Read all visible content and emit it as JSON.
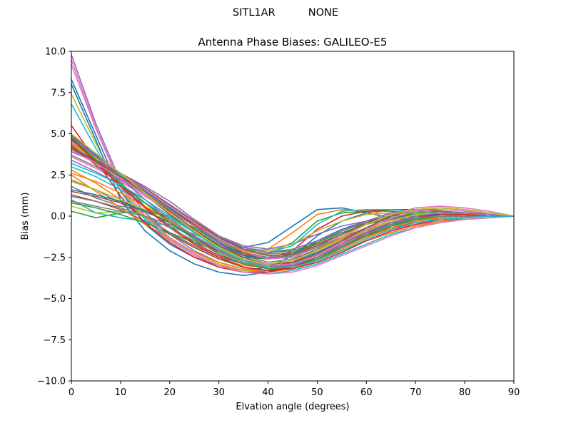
{
  "figure": {
    "suptitle_left": "SITL1AR",
    "suptitle_right": "NONE"
  },
  "chart_data": {
    "type": "line",
    "title": "Antenna Phase Biases: GALILEO-E5",
    "xlabel": "Elvation angle (degrees)",
    "ylabel": "Bias (mm)",
    "xlim": [
      0,
      90
    ],
    "ylim": [
      -10,
      10
    ],
    "xticks": [
      "0",
      "10",
      "20",
      "30",
      "40",
      "50",
      "60",
      "70",
      "80",
      "90"
    ],
    "yticks": [
      "10.0",
      "7.5",
      "5.0",
      "2.5",
      "0.0",
      "−2.5",
      "−5.0",
      "−7.5",
      "−10.0"
    ],
    "legend": "none",
    "grid": false,
    "x": [
      0,
      5,
      10,
      15,
      20,
      25,
      30,
      35,
      40,
      45,
      50,
      55,
      60,
      65,
      70,
      75,
      80,
      85,
      90
    ],
    "series": [
      {
        "color": "#1f77b4",
        "values": [
          8.3,
          4.9,
          1.5,
          -0.5,
          -1.7,
          -2.5,
          -3.0,
          -3.3,
          -3.1,
          -2.4,
          -1.2,
          -0.3,
          0.2,
          0.4,
          0.4,
          0.3,
          0.2,
          0.1,
          0.0
        ]
      },
      {
        "color": "#ff7f0e",
        "values": [
          2.8,
          2.0,
          1.0,
          0.0,
          -1.0,
          -1.9,
          -2.6,
          -3.0,
          -3.1,
          -2.8,
          -2.1,
          -1.4,
          -0.8,
          -0.4,
          -0.2,
          -0.1,
          0.0,
          0.0,
          0.0
        ]
      },
      {
        "color": "#2ca02c",
        "values": [
          0.3,
          -0.1,
          0.2,
          0.3,
          0.0,
          -0.7,
          -1.6,
          -2.3,
          -2.5,
          -2.4,
          -1.6,
          -0.9,
          -0.4,
          -0.2,
          -0.1,
          0.0,
          0.0,
          0.0,
          0.0
        ]
      },
      {
        "color": "#d62728",
        "values": [
          4.7,
          3.4,
          1.9,
          0.6,
          -0.6,
          -1.6,
          -2.4,
          -2.9,
          -3.1,
          -2.8,
          -2.2,
          -1.6,
          -1.1,
          -0.7,
          -0.4,
          -0.2,
          -0.1,
          0.0,
          0.0
        ]
      },
      {
        "color": "#9467bd",
        "values": [
          9.8,
          5.6,
          2.1,
          0.2,
          -1.1,
          -2.1,
          -2.8,
          -3.2,
          -3.3,
          -3.0,
          -2.4,
          -1.6,
          -0.9,
          -0.4,
          -0.1,
          0.0,
          0.0,
          0.0,
          0.0
        ]
      },
      {
        "color": "#8c564b",
        "values": [
          1.3,
          0.9,
          0.4,
          -0.3,
          -1.1,
          -1.9,
          -2.6,
          -3.1,
          -3.3,
          -3.0,
          -2.4,
          -1.8,
          -1.2,
          -0.8,
          -0.5,
          -0.3,
          -0.2,
          -0.1,
          0.0
        ]
      },
      {
        "color": "#e377c2",
        "values": [
          9.2,
          5.3,
          1.8,
          -0.2,
          -1.5,
          -2.4,
          -3.0,
          -3.3,
          -3.3,
          -3.0,
          -2.4,
          -1.8,
          -1.2,
          -0.8,
          -0.5,
          -0.3,
          -0.1,
          0.0,
          0.0
        ]
      },
      {
        "color": "#7f7f7f",
        "values": [
          2.2,
          1.6,
          0.8,
          -0.1,
          -1.0,
          -1.8,
          -2.5,
          -2.9,
          -3.0,
          -2.7,
          -2.0,
          -1.4,
          -0.9,
          -0.5,
          -0.3,
          -0.1,
          0.0,
          0.0,
          0.0
        ]
      },
      {
        "color": "#bcbd22",
        "values": [
          7.4,
          4.4,
          1.6,
          -0.1,
          -1.3,
          -2.2,
          -2.9,
          -3.3,
          -3.4,
          -3.2,
          -2.7,
          -2.1,
          -1.5,
          -1.0,
          -0.6,
          -0.4,
          -0.2,
          -0.1,
          0.0
        ]
      },
      {
        "color": "#17becf",
        "values": [
          6.8,
          4.1,
          1.5,
          -0.2,
          -1.4,
          -2.3,
          -3.0,
          -3.4,
          -3.5,
          -3.3,
          -2.9,
          -2.3,
          -1.7,
          -1.1,
          -0.7,
          -0.4,
          -0.2,
          -0.1,
          0.0
        ]
      },
      {
        "color": "#1f77b4",
        "values": [
          4.1,
          3.2,
          2.3,
          1.4,
          0.4,
          -0.6,
          -1.5,
          -1.9,
          -1.6,
          -0.6,
          0.4,
          0.5,
          0.2,
          -0.1,
          -0.2,
          -0.2,
          -0.1,
          0.0,
          0.0
        ]
      },
      {
        "color": "#ff7f0e",
        "values": [
          4.3,
          3.3,
          2.4,
          1.4,
          0.4,
          -0.6,
          -1.5,
          -2.2,
          -2.0,
          -1.0,
          0.1,
          0.4,
          0.3,
          0.1,
          0.0,
          0.0,
          0.0,
          0.0,
          0.0
        ]
      },
      {
        "color": "#2ca02c",
        "values": [
          4.5,
          3.5,
          2.5,
          1.6,
          0.6,
          -0.4,
          -1.3,
          -2.1,
          -2.3,
          -1.6,
          -0.3,
          0.2,
          0.3,
          0.3,
          0.2,
          0.1,
          0.1,
          0.0,
          0.0
        ]
      },
      {
        "color": "#d62728",
        "values": [
          4.7,
          3.6,
          2.5,
          1.5,
          0.5,
          -0.5,
          -1.4,
          -2.3,
          -2.6,
          -2.1,
          -0.8,
          0.0,
          0.3,
          0.4,
          0.4,
          0.3,
          0.2,
          0.1,
          0.0
        ]
      },
      {
        "color": "#9467bd",
        "values": [
          4.6,
          3.7,
          2.6,
          1.6,
          0.6,
          -0.4,
          -1.2,
          -1.8,
          -2.0,
          -1.7,
          -1.1,
          -0.6,
          -0.3,
          -0.1,
          0.0,
          0.0,
          0.0,
          0.0,
          0.0
        ]
      },
      {
        "color": "#8c564b",
        "values": [
          4.9,
          3.8,
          2.5,
          1.3,
          0.1,
          -1.0,
          -1.8,
          -2.4,
          -2.5,
          -2.2,
          -1.7,
          -1.1,
          -0.5,
          -0.1,
          0.1,
          0.1,
          0.1,
          0.0,
          0.0
        ]
      },
      {
        "color": "#e377c2",
        "values": [
          3.6,
          2.9,
          2.1,
          1.2,
          0.3,
          -0.6,
          -1.4,
          -2.0,
          -2.4,
          -2.5,
          -2.2,
          -1.6,
          -1.0,
          -0.5,
          -0.2,
          0.0,
          0.0,
          0.0,
          0.0
        ]
      },
      {
        "color": "#7f7f7f",
        "values": [
          1.8,
          1.1,
          0.6,
          0.4,
          -0.1,
          -0.8,
          -1.7,
          -2.4,
          -2.8,
          -2.6,
          -2.0,
          -1.4,
          -0.8,
          -0.4,
          -0.2,
          -0.1,
          0.0,
          0.0,
          0.0
        ]
      },
      {
        "color": "#bcbd22",
        "values": [
          0.6,
          0.2,
          0.3,
          0.2,
          -0.2,
          -0.9,
          -1.8,
          -2.6,
          -3.0,
          -2.9,
          -2.3,
          -1.6,
          -1.0,
          -0.5,
          -0.2,
          -0.1,
          0.0,
          0.0,
          0.0
        ]
      },
      {
        "color": "#17becf",
        "values": [
          1.0,
          0.2,
          -0.1,
          -0.3,
          -0.6,
          -1.2,
          -2.0,
          -2.6,
          -2.9,
          -2.7,
          -2.2,
          -1.6,
          -1.0,
          -0.6,
          -0.3,
          -0.1,
          0.0,
          0.0,
          0.0
        ]
      },
      {
        "color": "#1f77b4",
        "values": [
          8.0,
          4.6,
          1.0,
          -0.9,
          -2.1,
          -2.9,
          -3.4,
          -3.6,
          -3.4,
          -2.9,
          -2.2,
          -1.5,
          -0.9,
          -0.5,
          -0.2,
          -0.1,
          0.0,
          0.0,
          0.0
        ]
      },
      {
        "color": "#ff7f0e",
        "values": [
          2.5,
          1.5,
          0.5,
          -0.5,
          -1.4,
          -2.2,
          -2.8,
          -3.2,
          -3.4,
          -3.2,
          -2.7,
          -2.1,
          -1.5,
          -1.0,
          -0.6,
          -0.3,
          -0.1,
          0.0,
          0.0
        ]
      },
      {
        "color": "#2ca02c",
        "values": [
          0.8,
          0.5,
          0.1,
          -0.4,
          -1.0,
          -1.6,
          -2.1,
          -2.5,
          -2.6,
          -2.4,
          -1.9,
          -1.3,
          -0.8,
          -0.4,
          -0.2,
          -0.1,
          0.0,
          0.0,
          0.0
        ]
      },
      {
        "color": "#d62728",
        "values": [
          5.5,
          3.4,
          1.2,
          -0.4,
          -1.6,
          -2.5,
          -3.1,
          -3.4,
          -3.4,
          -3.1,
          -2.5,
          -1.8,
          -1.2,
          -0.7,
          -0.4,
          -0.2,
          -0.1,
          0.0,
          0.0
        ]
      },
      {
        "color": "#9467bd",
        "values": [
          3.4,
          2.7,
          1.9,
          1.0,
          0.0,
          -1.0,
          -1.9,
          -2.6,
          -3.0,
          -3.0,
          -2.6,
          -2.0,
          -1.3,
          -0.7,
          -0.3,
          -0.1,
          0.0,
          0.0,
          0.0
        ]
      },
      {
        "color": "#8c564b",
        "values": [
          1.5,
          1.2,
          0.8,
          0.3,
          -0.4,
          -1.2,
          -2.0,
          -2.6,
          -2.9,
          -2.8,
          -2.3,
          -1.6,
          -1.0,
          -0.5,
          -0.2,
          -0.1,
          0.0,
          0.0,
          0.0
        ]
      },
      {
        "color": "#e377c2",
        "values": [
          9.5,
          5.4,
          1.9,
          0.0,
          -1.3,
          -2.3,
          -3.0,
          -3.4,
          -3.5,
          -3.4,
          -3.0,
          -2.4,
          -1.8,
          -1.2,
          -0.7,
          -0.4,
          -0.2,
          -0.1,
          0.0
        ]
      },
      {
        "color": "#7f7f7f",
        "values": [
          0.9,
          0.6,
          0.3,
          0.0,
          -0.5,
          -1.1,
          -1.7,
          -2.1,
          -2.3,
          -2.2,
          -1.8,
          -1.3,
          -0.8,
          -0.4,
          -0.2,
          -0.1,
          0.0,
          0.0,
          0.0
        ]
      },
      {
        "color": "#bcbd22",
        "values": [
          4.4,
          3.5,
          2.6,
          1.6,
          0.7,
          -0.3,
          -1.2,
          -1.9,
          -2.1,
          -1.7,
          -0.9,
          -0.3,
          0.1,
          0.2,
          0.2,
          0.1,
          0.1,
          0.0,
          0.0
        ]
      },
      {
        "color": "#17becf",
        "values": [
          4.2,
          3.4,
          2.5,
          1.6,
          0.6,
          -0.4,
          -1.3,
          -2.0,
          -2.2,
          -1.8,
          -0.5,
          0.3,
          0.4,
          0.4,
          0.3,
          0.2,
          0.1,
          0.1,
          0.0
        ]
      },
      {
        "color": "#1f77b4",
        "values": [
          4.8,
          3.7,
          2.6,
          1.5,
          0.5,
          -0.6,
          -1.6,
          -2.4,
          -2.6,
          -2.3,
          -1.5,
          -0.8,
          -0.3,
          0.0,
          0.1,
          0.1,
          0.1,
          0.0,
          0.0
        ]
      },
      {
        "color": "#ff7f0e",
        "values": [
          4.4,
          3.4,
          2.4,
          1.4,
          0.4,
          -0.6,
          -1.5,
          -2.1,
          -2.4,
          -2.3,
          -1.9,
          -1.4,
          -0.8,
          -0.3,
          0.1,
          0.2,
          0.1,
          0.1,
          0.0
        ]
      },
      {
        "color": "#2ca02c",
        "values": [
          4.6,
          3.6,
          2.6,
          1.6,
          0.6,
          -0.4,
          -1.3,
          -1.9,
          -2.2,
          -2.1,
          -1.6,
          -1.0,
          -0.5,
          -0.1,
          0.2,
          0.3,
          0.2,
          0.1,
          0.0
        ]
      },
      {
        "color": "#d62728",
        "values": [
          4.3,
          3.1,
          1.9,
          0.8,
          -0.3,
          -1.3,
          -2.2,
          -2.8,
          -3.2,
          -3.2,
          -2.8,
          -2.2,
          -1.5,
          -0.9,
          -0.5,
          -0.2,
          -0.1,
          0.0,
          0.0
        ]
      },
      {
        "color": "#9467bd",
        "values": [
          3.9,
          3.3,
          2.6,
          1.8,
          0.9,
          -0.2,
          -1.2,
          -1.9,
          -2.2,
          -2.0,
          -1.5,
          -0.9,
          -0.3,
          0.2,
          0.4,
          0.4,
          0.3,
          0.1,
          0.0
        ]
      },
      {
        "color": "#8c564b",
        "values": [
          4.1,
          3.4,
          2.6,
          1.7,
          0.7,
          -0.3,
          -1.3,
          -2.0,
          -2.4,
          -2.3,
          -1.8,
          -1.1,
          -0.4,
          0.1,
          0.4,
          0.5,
          0.4,
          0.2,
          0.0
        ]
      },
      {
        "color": "#e377c2",
        "values": [
          4.5,
          3.6,
          2.6,
          1.6,
          0.6,
          -0.4,
          -1.4,
          -2.2,
          -2.6,
          -2.5,
          -1.9,
          -1.2,
          -0.5,
          0.1,
          0.5,
          0.6,
          0.5,
          0.3,
          0.0
        ]
      },
      {
        "color": "#7f7f7f",
        "values": [
          3.7,
          3.0,
          2.2,
          1.3,
          0.4,
          -0.6,
          -1.5,
          -2.2,
          -2.5,
          -2.4,
          -1.9,
          -1.3,
          -0.7,
          -0.2,
          0.1,
          0.2,
          0.2,
          0.1,
          0.0
        ]
      },
      {
        "color": "#bcbd22",
        "values": [
          2.1,
          1.6,
          1.0,
          0.4,
          -0.4,
          -1.2,
          -2.0,
          -2.6,
          -2.9,
          -2.8,
          -2.3,
          -1.6,
          -0.9,
          -0.3,
          0.1,
          0.2,
          0.2,
          0.1,
          0.0
        ]
      },
      {
        "color": "#17becf",
        "values": [
          3.0,
          2.4,
          1.6,
          0.8,
          -0.1,
          -1.0,
          -1.9,
          -2.6,
          -3.0,
          -2.9,
          -2.5,
          -1.9,
          -1.2,
          -0.6,
          -0.2,
          0.0,
          0.1,
          0.0,
          0.0
        ]
      },
      {
        "color": "#1f77b4",
        "values": [
          1.6,
          1.3,
          0.9,
          0.3,
          -0.4,
          -1.3,
          -2.1,
          -2.7,
          -3.0,
          -2.9,
          -2.4,
          -1.7,
          -1.0,
          -0.4,
          0.0,
          0.1,
          0.1,
          0.0,
          0.0
        ]
      },
      {
        "color": "#ff7f0e",
        "values": [
          2.6,
          2.1,
          1.4,
          0.6,
          -0.3,
          -1.2,
          -2.1,
          -2.8,
          -3.2,
          -3.1,
          -2.7,
          -2.0,
          -1.3,
          -0.7,
          -0.3,
          -0.1,
          0.0,
          0.0,
          0.0
        ]
      },
      {
        "color": "#2ca02c",
        "values": [
          4.8,
          3.4,
          2.0,
          0.8,
          -0.4,
          -1.4,
          -2.3,
          -2.9,
          -3.2,
          -3.1,
          -2.6,
          -1.9,
          -1.2,
          -0.6,
          -0.2,
          0.0,
          0.0,
          0.0,
          0.0
        ]
      },
      {
        "color": "#d62728",
        "values": [
          4.7,
          3.3,
          1.8,
          0.5,
          -0.7,
          -1.7,
          -2.5,
          -3.1,
          -3.3,
          -3.1,
          -2.5,
          -1.8,
          -1.1,
          -0.5,
          -0.1,
          0.1,
          0.1,
          0.0,
          0.0
        ]
      },
      {
        "color": "#9467bd",
        "values": [
          4.9,
          3.6,
          2.3,
          1.0,
          -0.2,
          -1.2,
          -2.1,
          -2.7,
          -3.0,
          -2.9,
          -2.4,
          -1.7,
          -1.0,
          -0.4,
          0.0,
          0.2,
          0.2,
          0.1,
          0.0
        ]
      },
      {
        "color": "#8c564b",
        "values": [
          4.2,
          3.3,
          2.4,
          1.4,
          0.3,
          -0.8,
          -1.8,
          -2.5,
          -2.9,
          -2.8,
          -2.3,
          -1.5,
          -0.7,
          0.0,
          0.4,
          0.5,
          0.4,
          0.2,
          0.0
        ]
      },
      {
        "color": "#e377c2",
        "values": [
          4.0,
          3.2,
          2.3,
          1.3,
          0.2,
          -0.9,
          -1.9,
          -2.6,
          -3.0,
          -2.9,
          -2.4,
          -1.6,
          -0.8,
          -0.1,
          0.3,
          0.4,
          0.3,
          0.2,
          0.0
        ]
      },
      {
        "color": "#7f7f7f",
        "values": [
          1.2,
          0.9,
          0.5,
          0.0,
          -0.7,
          -1.5,
          -2.2,
          -2.8,
          -3.1,
          -3.0,
          -2.5,
          -1.8,
          -1.1,
          -0.5,
          -0.1,
          0.0,
          0.0,
          0.0,
          0.0
        ]
      },
      {
        "color": "#bcbd22",
        "values": [
          5.0,
          3.8,
          2.6,
          1.4,
          0.2,
          -0.9,
          -1.9,
          -2.6,
          -2.9,
          -2.7,
          -2.1,
          -1.3,
          -0.5,
          0.1,
          0.4,
          0.5,
          0.4,
          0.2,
          0.0
        ]
      },
      {
        "color": "#17becf",
        "values": [
          3.2,
          2.6,
          1.9,
          1.0,
          0.0,
          -1.0,
          -2.0,
          -2.7,
          -3.1,
          -3.1,
          -2.7,
          -2.1,
          -1.4,
          -0.8,
          -0.4,
          -0.2,
          -0.1,
          0.0,
          0.0
        ]
      }
    ]
  }
}
